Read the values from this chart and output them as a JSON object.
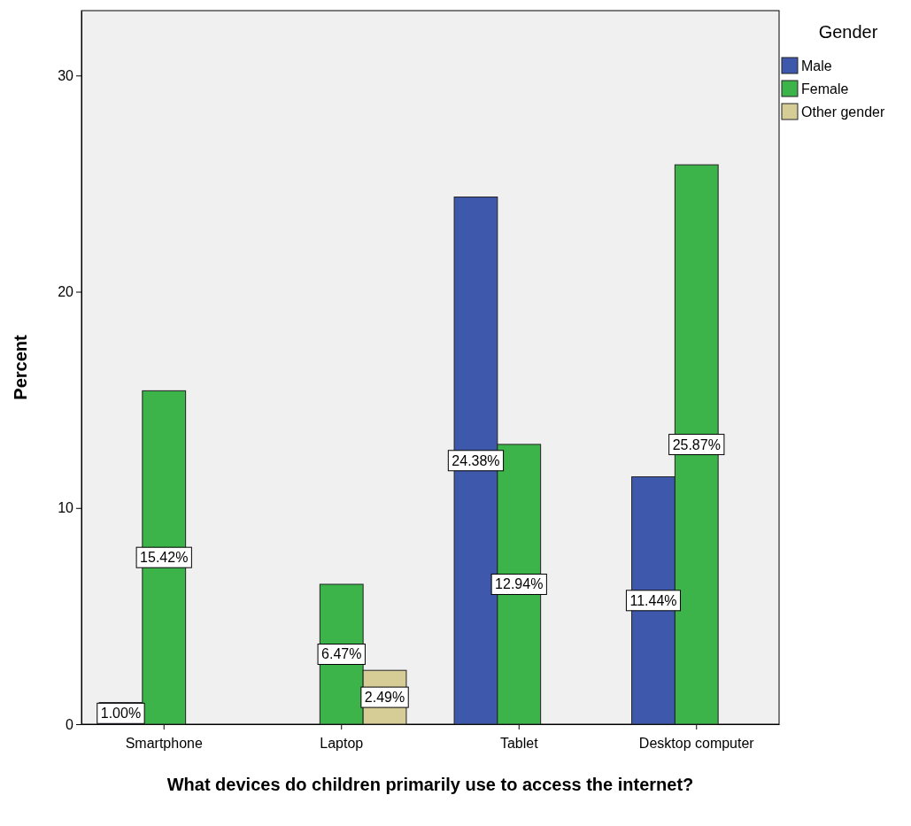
{
  "chart_data": {
    "type": "bar",
    "xlabel": "What devices do children primarily use to access the internet?",
    "ylabel": "Percent",
    "legend_title": "Gender",
    "legend": "right",
    "grid": false,
    "categories": [
      "Smartphone",
      "Laptop",
      "Tablet",
      "Desktop computer"
    ],
    "ylim": [
      0,
      33
    ],
    "yticks": [
      0,
      10,
      20,
      30
    ],
    "series": [
      {
        "name": "Male",
        "color": "#3e58ac",
        "values": [
          1.0,
          null,
          24.38,
          11.44
        ],
        "value_labels": [
          "1.00%",
          null,
          "24.38%",
          "11.44%"
        ]
      },
      {
        "name": "Female",
        "color": "#3cb44a",
        "values": [
          15.42,
          6.47,
          12.94,
          25.87
        ],
        "value_labels": [
          "15.42%",
          "6.47%",
          "12.94%",
          "25.87%"
        ]
      },
      {
        "name": "Other gender",
        "color": "#d5cc96",
        "values": [
          null,
          2.49,
          null,
          null
        ],
        "value_labels": [
          null,
          "2.49%",
          null,
          null
        ]
      }
    ]
  }
}
